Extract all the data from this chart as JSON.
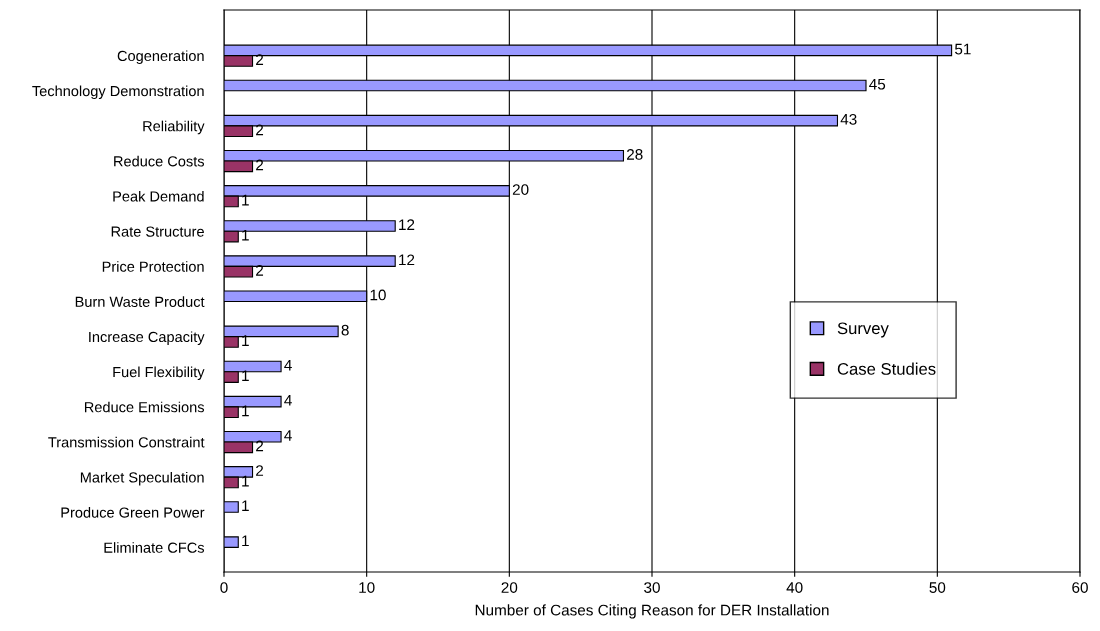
{
  "chart_data": {
    "type": "bar",
    "orientation": "horizontal",
    "xlabel": "Number of Cases Citing Reason for DER Installation",
    "categories": [
      "Cogeneration",
      "Technology Demonstration",
      "Reliability",
      "Reduce Costs",
      "Peak Demand",
      "Rate Structure",
      "Price Protection",
      "Burn Waste Product",
      "Increase Capacity",
      "Fuel Flexibility",
      "Reduce Emissions",
      "Transmission Constraint",
      "Market Speculation",
      "Produce Green Power",
      "Eliminate CFCs"
    ],
    "series": [
      {
        "name": "Survey",
        "color": "#9999ff",
        "values": [
          51,
          45,
          43,
          28,
          20,
          12,
          12,
          10,
          8,
          4,
          4,
          4,
          2,
          1,
          1
        ]
      },
      {
        "name": "Case Studies",
        "color": "#993366",
        "values": [
          2,
          null,
          2,
          2,
          1,
          1,
          2,
          null,
          1,
          1,
          1,
          2,
          1,
          null,
          null
        ]
      }
    ],
    "xlim": [
      0,
      60
    ],
    "xticks": [
      0,
      10,
      20,
      30,
      40,
      50,
      60
    ],
    "grid": "x",
    "legend": "right",
    "data_labels": true
  }
}
